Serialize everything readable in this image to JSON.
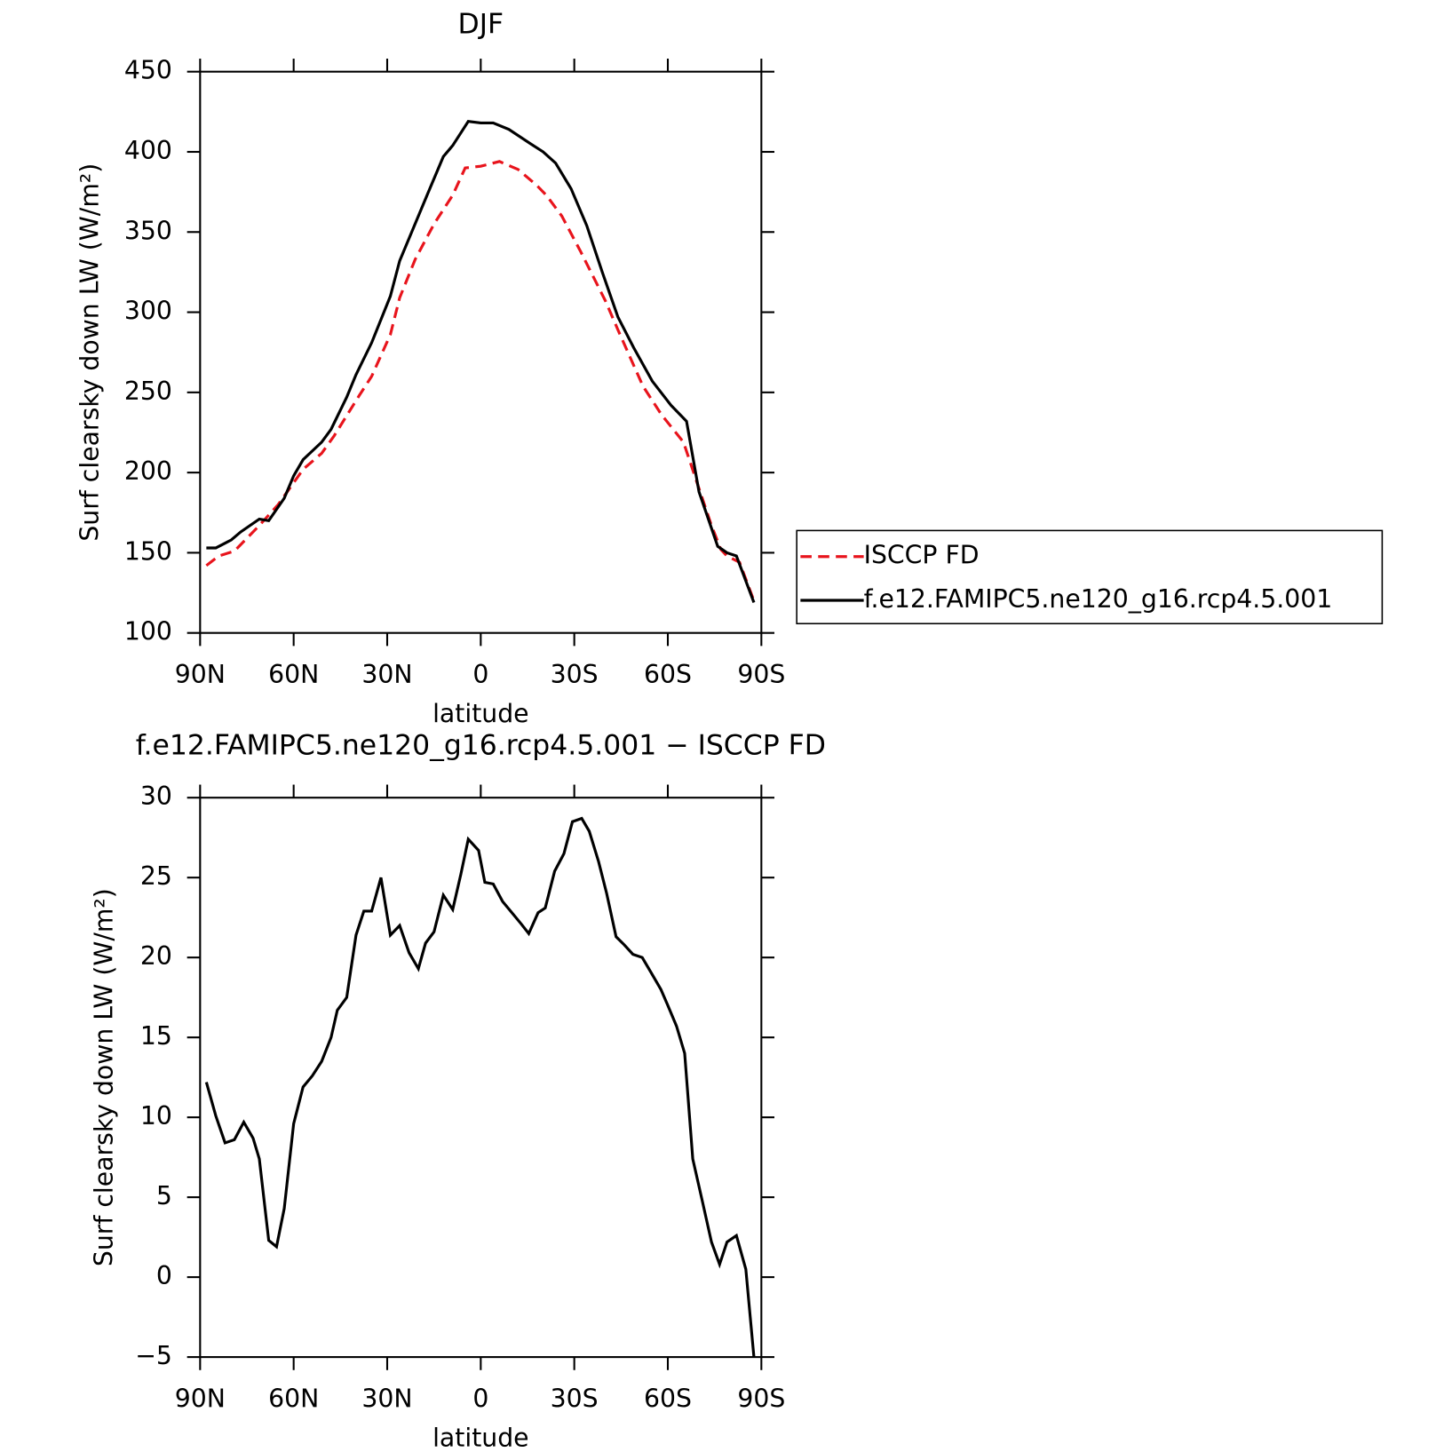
{
  "chart_data": [
    {
      "type": "line",
      "title": "DJF",
      "xlabel": "latitude",
      "ylabel": "Surf clearsky down LW (W/m²)",
      "xlim": [
        90,
        -90
      ],
      "xticks": [
        {
          "value": 90,
          "label": "90N"
        },
        {
          "value": 60,
          "label": "60N"
        },
        {
          "value": 30,
          "label": "30N"
        },
        0,
        {
          "value": -30,
          "label": "30S"
        },
        {
          "value": -60,
          "label": "60S"
        },
        {
          "value": -90,
          "label": "90S"
        }
      ],
      "ylim": [
        100,
        450
      ],
      "yticks": [
        100,
        150,
        200,
        250,
        300,
        350,
        400,
        450
      ],
      "legend": "right",
      "series": [
        {
          "name": "ISCCP FD",
          "color": "#e8141c",
          "dash": true,
          "x": [
            88,
            84,
            79,
            71,
            65,
            57,
            51,
            47,
            39,
            35,
            29,
            26,
            21,
            15,
            9,
            5,
            0,
            -6,
            -12,
            -18,
            -21,
            -26,
            -32,
            -40,
            -44,
            -52,
            -58,
            -65,
            -70,
            -74,
            -77,
            -79,
            -83,
            -87.6
          ],
          "values": [
            142,
            148,
            151,
            167,
            180,
            202,
            212,
            223,
            248,
            260,
            286,
            309,
            333,
            355,
            373,
            390,
            391,
            394,
            389,
            379,
            373,
            360,
            338,
            307,
            289,
            254,
            236,
            219,
            190,
            167,
            152,
            148,
            144,
            120
          ]
        },
        {
          "name": "f.e12.FAMIPC5.ne120_g16.rcp4.5.001",
          "color": "#000000",
          "dash": false,
          "x": [
            88,
            85,
            80,
            77,
            71,
            68,
            63,
            60,
            57,
            51,
            48,
            43,
            40,
            35,
            29,
            26,
            17,
            12,
            9,
            4,
            0,
            -2,
            -4,
            -9,
            -16,
            -20,
            -24,
            -29,
            -34,
            -39,
            -44,
            -49,
            -55,
            -61,
            -66,
            -70,
            -76,
            -79,
            -82,
            -87.6
          ],
          "values": [
            153,
            153,
            158,
            163,
            171,
            170,
            184,
            198,
            208,
            219,
            227,
            247,
            261,
            281,
            310,
            332,
            374,
            397,
            404,
            419,
            418,
            418,
            418,
            414,
            405,
            400,
            393,
            377,
            354,
            325,
            297,
            278,
            257,
            242,
            232,
            188,
            154,
            150,
            148,
            119
          ]
        }
      ]
    },
    {
      "type": "line",
      "title": "f.e12.FAMIPC5.ne120_g16.rcp4.5.001 − ISCCP FD",
      "xlabel": "latitude",
      "ylabel": "Surf clearsky down LW (W/m²)",
      "xlim": [
        90,
        -90
      ],
      "xticks": [
        {
          "value": 90,
          "label": "90N"
        },
        {
          "value": 60,
          "label": "60N"
        },
        {
          "value": 30,
          "label": "30N"
        },
        0,
        {
          "value": -30,
          "label": "30S"
        },
        {
          "value": -60,
          "label": "60S"
        },
        {
          "value": -90,
          "label": "90S"
        }
      ],
      "ylim": [
        -5,
        30
      ],
      "yticks": [
        {
          "value": -5,
          "label": "−5"
        },
        0,
        5,
        10,
        15,
        20,
        25,
        30
      ],
      "series": [
        {
          "color": "#000000",
          "dash": false,
          "x": [
            88,
            85,
            82,
            79,
            76,
            73,
            71,
            68,
            65.5,
            63,
            60,
            57,
            54,
            51,
            48,
            46,
            43,
            40,
            37.5,
            35,
            32,
            29,
            26,
            23,
            20,
            17.7,
            15,
            12,
            9,
            6.4,
            4,
            0.7,
            -1.3,
            -4,
            -7,
            -10,
            -13,
            -15.4,
            -18.4,
            -20.7,
            -23.7,
            -26.7,
            -29.4,
            -32.4,
            -34.8,
            -37.8,
            -40.4,
            -43.4,
            -46,
            -48.8,
            -51.8,
            -54.8,
            -57.8,
            -60,
            -62.8,
            -65.4,
            -68,
            -71,
            -74,
            -76.6,
            -79,
            -82,
            -85,
            -87.6
          ],
          "values": [
            12.2,
            10.1,
            8.4,
            8.6,
            9.7,
            8.7,
            7.4,
            2.3,
            1.9,
            4.3,
            9.6,
            11.9,
            12.6,
            13.5,
            15.0,
            16.7,
            17.5,
            21.4,
            22.9,
            22.9,
            25.0,
            21.4,
            22.0,
            20.3,
            19.3,
            20.9,
            21.6,
            23.9,
            23.0,
            25.2,
            27.4,
            26.7,
            24.7,
            24.6,
            23.5,
            22.8,
            22.1,
            21.5,
            22.8,
            23.1,
            25.4,
            26.5,
            28.5,
            28.7,
            27.9,
            26.0,
            24.0,
            21.3,
            20.8,
            20.2,
            20.0,
            19.0,
            18.0,
            17.0,
            15.7,
            14.0,
            7.4,
            4.8,
            2.2,
            0.8,
            2.2,
            2.6,
            0.5,
            -5.0
          ]
        }
      ]
    }
  ]
}
